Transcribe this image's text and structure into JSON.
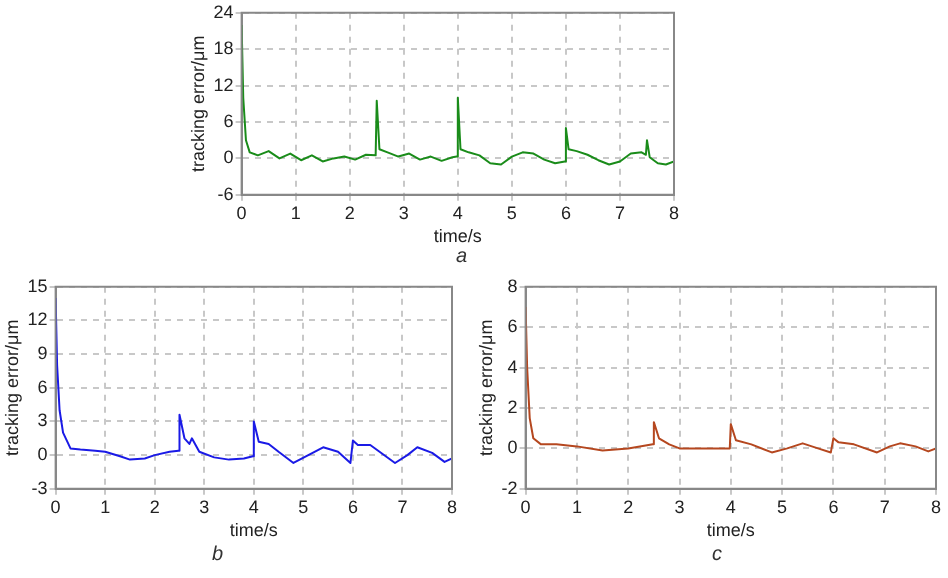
{
  "chart_data": [
    {
      "type": "line",
      "xlabel": "time/s",
      "ylabel": "tracking error/μm",
      "annotations": [
        "a"
      ],
      "xlim": [
        0,
        8
      ],
      "xticks": [
        0,
        1,
        2,
        3,
        4,
        5,
        6,
        7,
        8
      ],
      "ylim": [
        -6,
        24
      ],
      "yticks": [
        -6,
        0,
        6,
        12,
        18,
        24
      ],
      "grid": true,
      "legend": false,
      "marker": "none",
      "x": [
        0,
        0.03,
        0.08,
        0.15,
        0.3,
        0.5,
        0.7,
        0.9,
        1.1,
        1.3,
        1.5,
        1.7,
        1.9,
        2.1,
        2.3,
        2.48,
        2.5,
        2.55,
        2.7,
        2.9,
        3.1,
        3.3,
        3.5,
        3.7,
        3.9,
        3.98,
        4.0,
        4.05,
        4.2,
        4.4,
        4.6,
        4.8,
        5.0,
        5.2,
        5.4,
        5.6,
        5.8,
        5.98,
        6.0,
        6.05,
        6.2,
        6.4,
        6.6,
        6.8,
        7.0,
        7.2,
        7.4,
        7.48,
        7.5,
        7.55,
        7.7,
        7.85,
        8
      ],
      "series": [
        {
          "color": "#1a8c1a",
          "values": [
            22,
            10,
            3,
            1,
            0.5,
            1.2,
            0,
            0.8,
            -0.3,
            0.5,
            -0.5,
            0,
            0.3,
            -0.2,
            0.6,
            0.5,
            9.5,
            1.5,
            1,
            0.3,
            0.8,
            -0.2,
            0.3,
            -0.4,
            0.2,
            0.3,
            10,
            1.5,
            1,
            0.5,
            -0.8,
            -1,
            0.3,
            1,
            0.8,
            -0.2,
            -0.8,
            -0.5,
            5,
            1.5,
            1.2,
            0.6,
            -0.3,
            -1,
            -0.5,
            0.8,
            1,
            0.6,
            3,
            0.2,
            -0.8,
            -1,
            -0.5
          ]
        }
      ]
    },
    {
      "type": "line",
      "xlabel": "time/s",
      "ylabel": "tracking error/μm",
      "annotations": [
        "b"
      ],
      "xlim": [
        0,
        8
      ],
      "xticks": [
        0,
        1,
        2,
        3,
        4,
        5,
        6,
        7,
        8
      ],
      "ylim": [
        -3,
        15
      ],
      "yticks": [
        -3,
        0,
        3,
        6,
        9,
        12,
        15
      ],
      "grid": true,
      "legend": false,
      "marker": "none",
      "x": [
        0,
        0.03,
        0.08,
        0.15,
        0.3,
        0.5,
        0.8,
        1.0,
        1.3,
        1.5,
        1.8,
        2.0,
        2.3,
        2.48,
        2.5,
        2.6,
        2.7,
        2.75,
        2.9,
        3.2,
        3.5,
        3.8,
        3.98,
        4.0,
        4.1,
        4.3,
        4.5,
        4.8,
        5.1,
        5.4,
        5.7,
        5.95,
        6.0,
        6.1,
        6.35,
        6.6,
        6.85,
        7.1,
        7.3,
        7.6,
        7.85,
        8
      ],
      "series": [
        {
          "color": "#1a1ae6",
          "values": [
            14,
            8,
            4,
            2,
            0.6,
            0.5,
            0.4,
            0.3,
            -0.1,
            -0.4,
            -0.3,
            0,
            0.3,
            0.4,
            3.6,
            1.5,
            1,
            1.5,
            0.3,
            -0.2,
            -0.4,
            -0.3,
            -0.1,
            3,
            1.2,
            1,
            0.3,
            -0.7,
            0,
            0.7,
            0.3,
            -0.7,
            1.3,
            0.9,
            0.9,
            0.1,
            -0.7,
            0,
            0.7,
            0.2,
            -0.6,
            -0.3
          ]
        }
      ]
    },
    {
      "type": "line",
      "xlabel": "time/s",
      "ylabel": "tracking error/μm",
      "annotations": [
        "c"
      ],
      "xlim": [
        0,
        8
      ],
      "xticks": [
        0,
        1,
        2,
        3,
        4,
        5,
        6,
        7,
        8
      ],
      "ylim": [
        -2,
        8
      ],
      "yticks": [
        -2,
        0,
        2,
        4,
        6,
        8
      ],
      "grid": true,
      "legend": false,
      "marker": "none",
      "x": [
        0,
        0.03,
        0.08,
        0.15,
        0.3,
        0.6,
        1.0,
        1.5,
        2.0,
        2.48,
        2.5,
        2.6,
        2.8,
        3.0,
        3.5,
        3.98,
        4.0,
        4.1,
        4.4,
        4.8,
        5.1,
        5.4,
        5.7,
        5.95,
        6.0,
        6.1,
        6.4,
        6.85,
        7.1,
        7.3,
        7.6,
        7.85,
        8
      ],
      "series": [
        {
          "color": "#b5471f",
          "values": [
            7,
            4,
            1.5,
            0.5,
            0.2,
            0.2,
            0.1,
            -0.1,
            0,
            0.2,
            1.3,
            0.5,
            0.2,
            0,
            0,
            0,
            1.2,
            0.4,
            0.2,
            -0.2,
            0,
            0.25,
            0,
            -0.2,
            0.5,
            0.3,
            0.2,
            -0.2,
            0.1,
            0.25,
            0.1,
            -0.15,
            0
          ]
        }
      ]
    }
  ]
}
